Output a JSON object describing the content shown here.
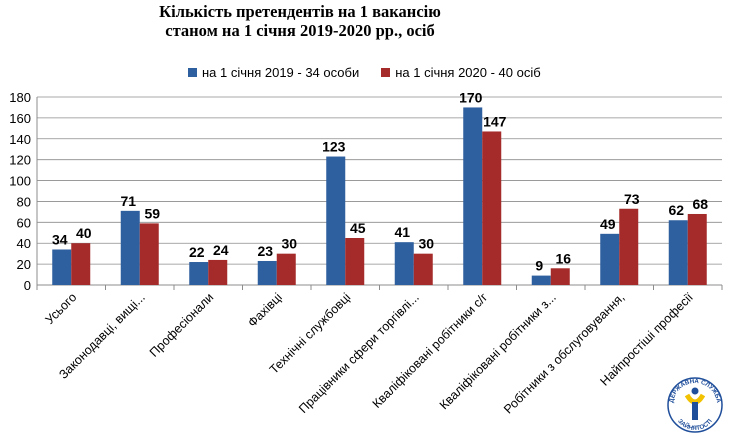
{
  "chart_data": {
    "type": "bar",
    "title": "Кількість  претендентів на 1 вакансію",
    "subtitle": "станом на 1 січня 2019-2020 рр., осіб",
    "categories": [
      "Усього",
      "Законодавці, вищі...",
      "Професіонали",
      "Фахівці",
      "Технічні службовці",
      "Працівники сфери торгівлі...",
      "Кваліфіковані робітники с/г",
      "Кваліфіковані робітники з...",
      "Робітники з обслуговування,",
      "Найпростіші професії"
    ],
    "series": [
      {
        "name": "на 1 січня 2019 - 34 особи",
        "values": [
          34,
          71,
          22,
          23,
          123,
          41,
          170,
          9,
          49,
          62
        ],
        "color": "#2E5F9E"
      },
      {
        "name": "на 1 січня 2020 - 40 осіб",
        "values": [
          40,
          59,
          24,
          30,
          45,
          30,
          147,
          16,
          73,
          68
        ],
        "color": "#A52A2A"
      }
    ],
    "ylim": [
      0,
      180
    ],
    "yticks": [
      0,
      20,
      40,
      60,
      80,
      100,
      120,
      140,
      160,
      180
    ],
    "grid": true,
    "legend": "top"
  },
  "logo": {
    "text_top": "ДЕРЖАВНА СЛУЖБА",
    "text_bottom": "ЗАЙНЯТОСТІ",
    "colors": [
      "#1F4E9A",
      "#F2C200"
    ]
  }
}
